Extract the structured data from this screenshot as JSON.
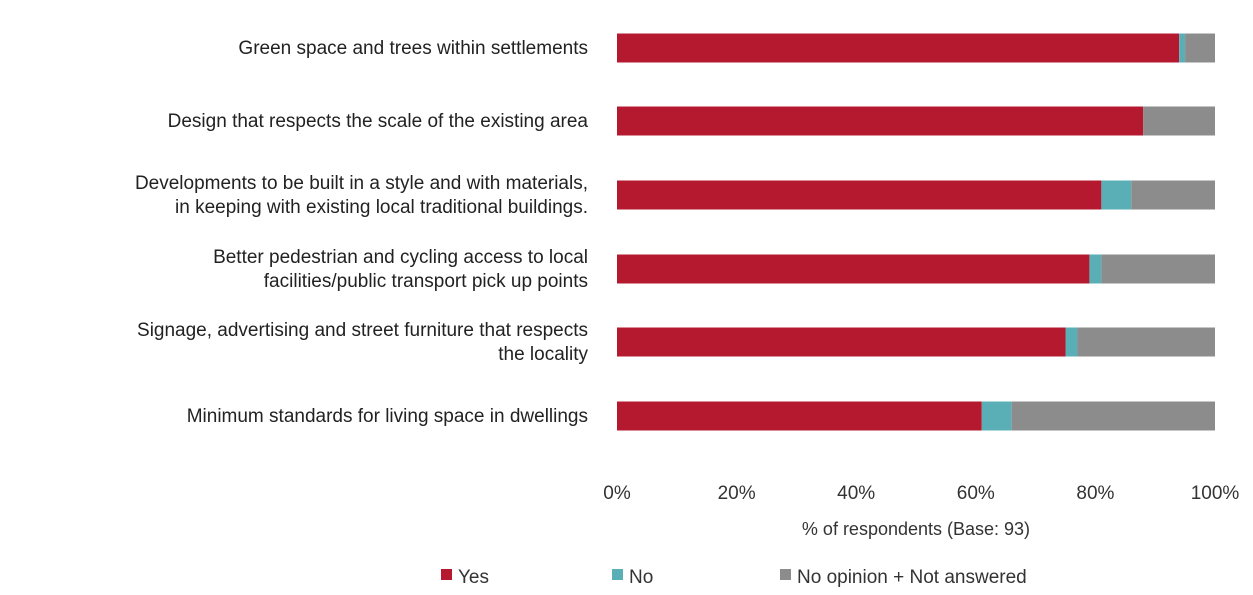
{
  "chart_data": {
    "type": "bar",
    "orientation": "horizontal",
    "stacked": true,
    "categories": [
      [
        "Green space and trees within settlements"
      ],
      [
        "Design that respects the scale of the existing area"
      ],
      [
        "Developments to be built in a style and with materials,",
        "in keeping with existing local traditional buildings."
      ],
      [
        "Better pedestrian and cycling access to local",
        "facilities/public transport pick up points"
      ],
      [
        "Signage, advertising and street furniture that respects",
        "the locality"
      ],
      [
        "Minimum standards for living space in dwellings"
      ]
    ],
    "series": [
      {
        "name": "Yes",
        "color": "#b5192f",
        "values": [
          94,
          88,
          81,
          79,
          75,
          61
        ]
      },
      {
        "name": "No",
        "color": "#5aafb7",
        "values": [
          1,
          0,
          5,
          2,
          2,
          5
        ]
      },
      {
        "name": "No opinion + Not answered",
        "color": "#8c8c8c",
        "values": [
          5,
          12,
          14,
          19,
          23,
          34
        ]
      }
    ],
    "x_ticks": [
      "0%",
      "20%",
      "40%",
      "60%",
      "80%",
      "100%"
    ],
    "xlim": [
      0,
      100
    ],
    "xlabel": "% of respondents (Base: 93)",
    "grid": false,
    "legend_position": "bottom"
  }
}
